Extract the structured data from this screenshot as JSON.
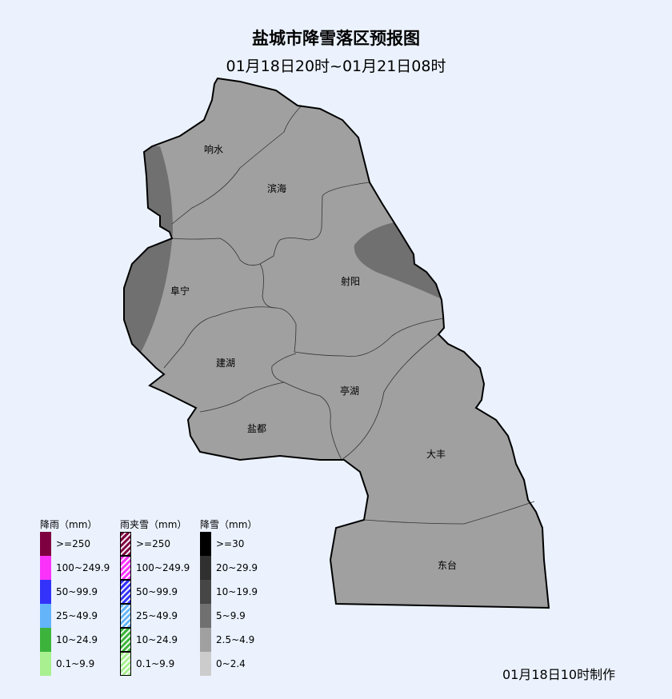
{
  "title": "盐城市降雪落区预报图",
  "subtitle": "01月18日20时~01月21日08时",
  "footer": "01月18日10时制作",
  "map": {
    "fill_color": "#A0A0A0",
    "heavy_fill_color": "#707070",
    "regions": [
      "响水",
      "滨海",
      "阜宁",
      "射阳",
      "建湖",
      "亭湖",
      "盐都",
      "大丰",
      "东台"
    ]
  },
  "legend": {
    "rain": {
      "title": "降雨（mm）",
      "items": [
        {
          "label": ">=250",
          "color": "#7F0040"
        },
        {
          "label": "100~249.9",
          "color": "#FA32FA"
        },
        {
          "label": "50~99.9",
          "color": "#3232FA"
        },
        {
          "label": "25~49.9",
          "color": "#64B4FA"
        },
        {
          "label": "10~24.9",
          "color": "#3CB43C"
        },
        {
          "label": "0.1~9.9",
          "color": "#A8F090"
        }
      ]
    },
    "sleet": {
      "title": "雨夹雪（mm）",
      "items": [
        {
          "label": ">=250",
          "color": "#7F0040"
        },
        {
          "label": "100~249.9",
          "color": "#FA32FA"
        },
        {
          "label": "50~99.9",
          "color": "#3232FA"
        },
        {
          "label": "25~49.9",
          "color": "#64B4FA"
        },
        {
          "label": "10~24.9",
          "color": "#3CB43C"
        },
        {
          "label": "0.1~9.9",
          "color": "#A8F090"
        }
      ]
    },
    "snow": {
      "title": "降雪（mm）",
      "items": [
        {
          "label": ">=30",
          "color": "#000000"
        },
        {
          "label": "20~29.9",
          "color": "#303030"
        },
        {
          "label": "10~19.9",
          "color": "#464646"
        },
        {
          "label": "5~9.9",
          "color": "#707070"
        },
        {
          "label": "2.5~4.9",
          "color": "#A0A0A0"
        },
        {
          "label": "0~2.4",
          "color": "#CCCCCC"
        }
      ]
    }
  }
}
